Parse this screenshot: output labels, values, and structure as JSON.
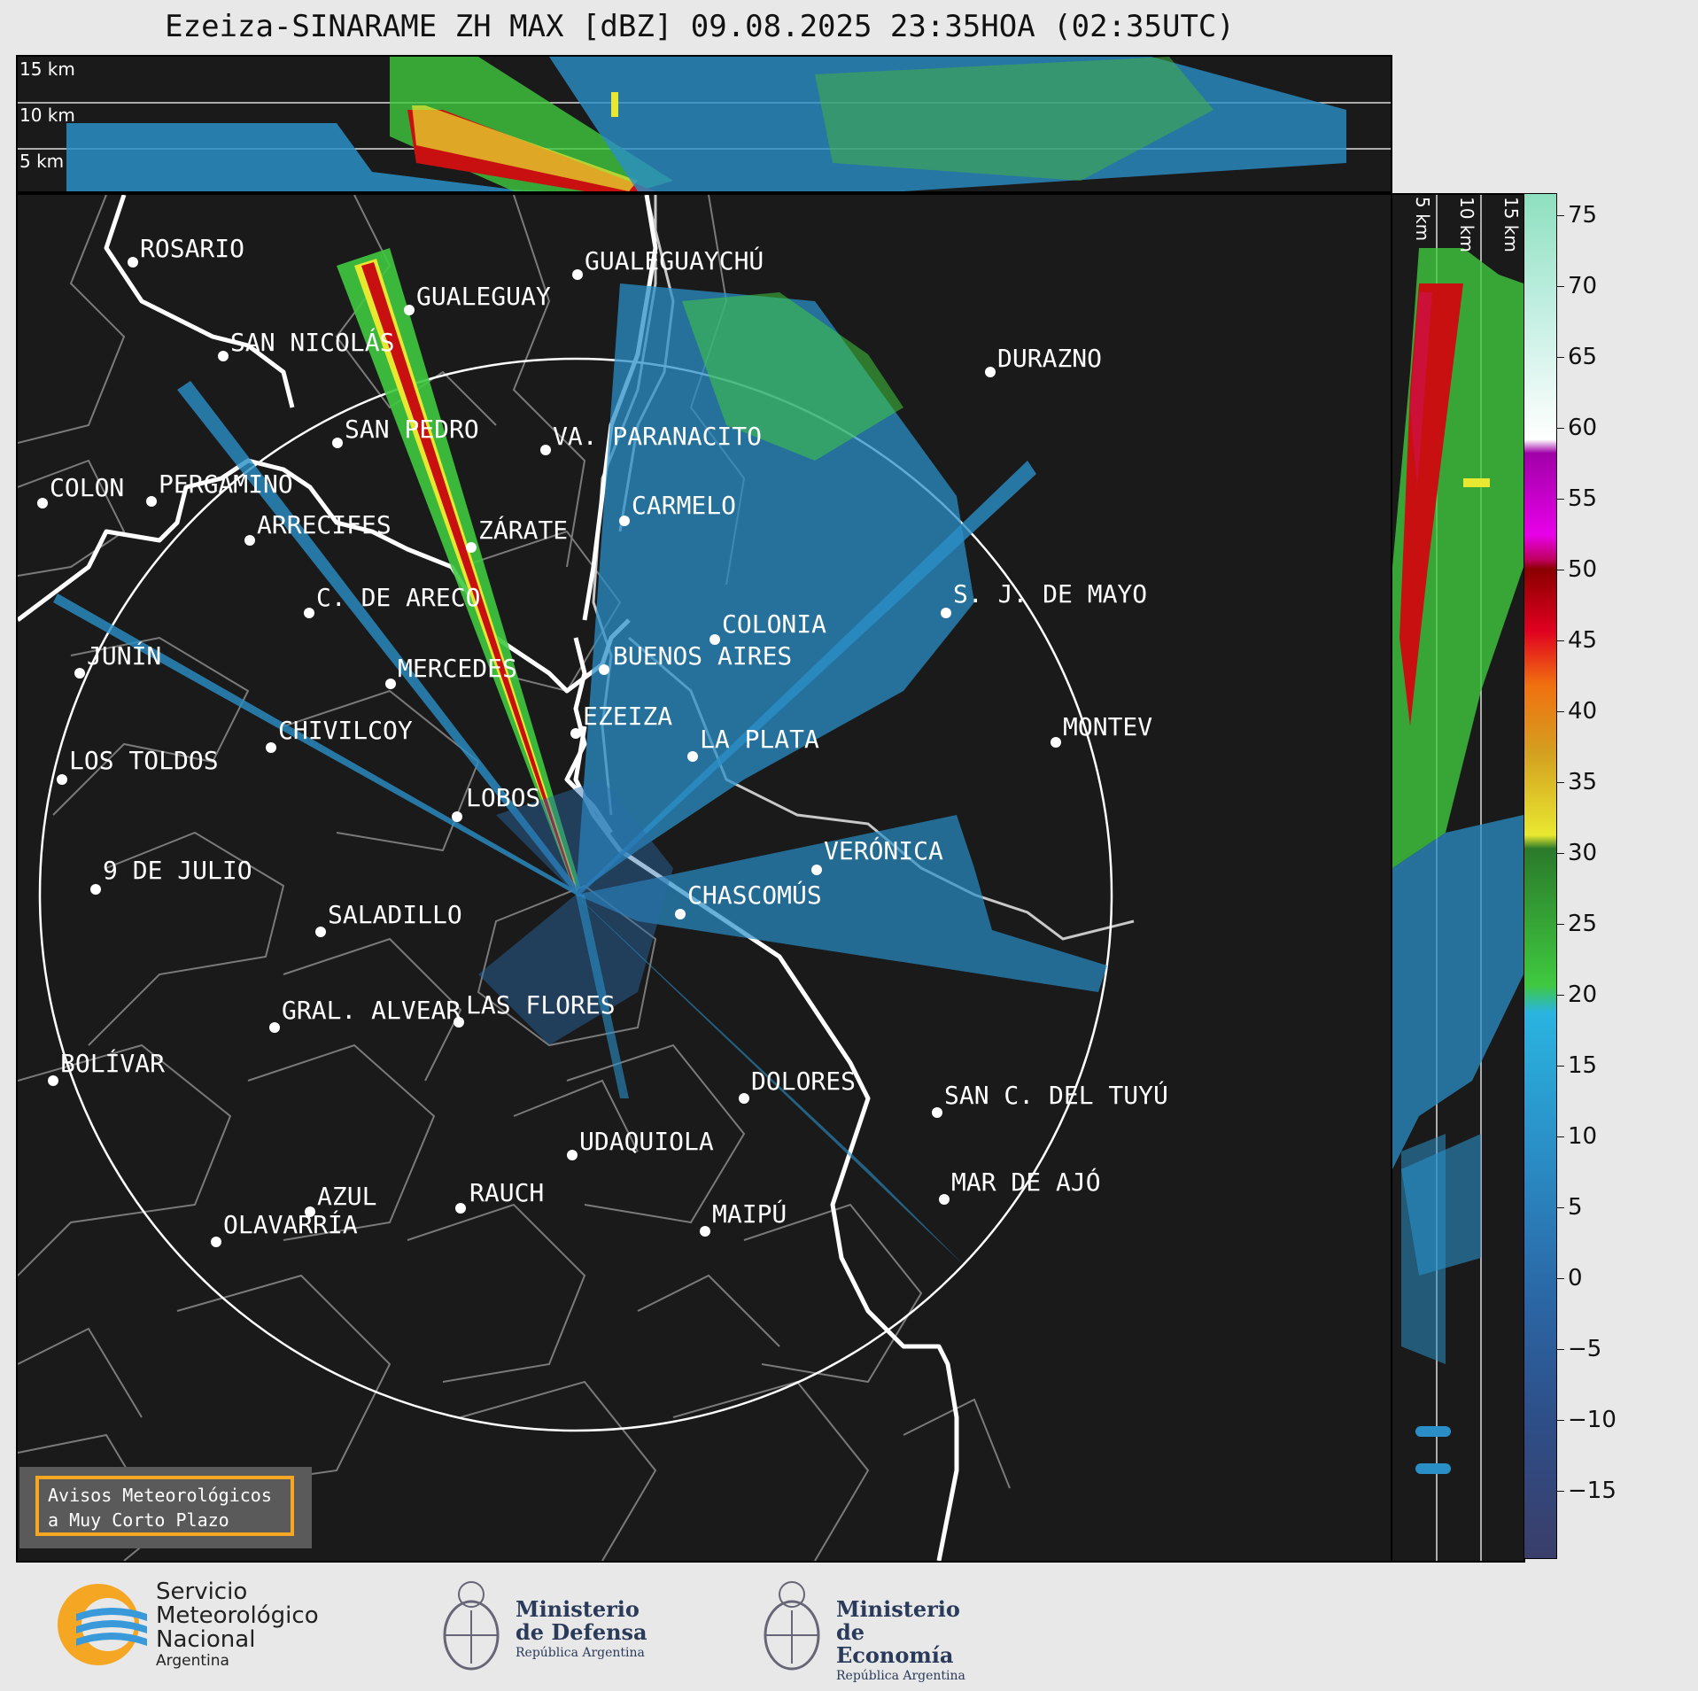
{
  "title": "Ezeiza-SINARAME ZH MAX [dBZ] 09.08.2025 23:35HOA (02:35UTC)",
  "top_panel": {
    "levels": [
      "15 km",
      "10 km",
      "5 km"
    ]
  },
  "side_panel": {
    "levels": [
      "5 km",
      "10 km",
      "15 km"
    ]
  },
  "cities": [
    {
      "name": "ROSARIO"
    },
    {
      "name": "GUALEGUAYCHÚ"
    },
    {
      "name": "GUALEGUAY"
    },
    {
      "name": "SAN NICOLÁS"
    },
    {
      "name": "DURAZNO"
    },
    {
      "name": "SAN PEDRO"
    },
    {
      "name": "VA. PARANACITO"
    },
    {
      "name": "COLON"
    },
    {
      "name": "PERGAMINO"
    },
    {
      "name": "CARMELO"
    },
    {
      "name": "ARRECIFES"
    },
    {
      "name": "ZÁRATE"
    },
    {
      "name": "S. J. DE MAYO"
    },
    {
      "name": "C. DE ARECO"
    },
    {
      "name": "COLONIA"
    },
    {
      "name": "JUNÍN"
    },
    {
      "name": "BUENOS AIRES"
    },
    {
      "name": "MERCEDES"
    },
    {
      "name": "MONTEV"
    },
    {
      "name": "EZEIZA"
    },
    {
      "name": "CHIVILCOY"
    },
    {
      "name": "LA PLATA"
    },
    {
      "name": "LOS TOLDOS"
    },
    {
      "name": "LOBOS"
    },
    {
      "name": "VERÓNICA"
    },
    {
      "name": "9 DE JULIO"
    },
    {
      "name": "CHASCOMÚS"
    },
    {
      "name": "SALADILLO"
    },
    {
      "name": "GRAL. ALVEAR"
    },
    {
      "name": "LAS FLORES"
    },
    {
      "name": "BOLÍVAR"
    },
    {
      "name": "DOLORES"
    },
    {
      "name": "SAN C. DEL TUYÚ"
    },
    {
      "name": "UDAQUIOLA"
    },
    {
      "name": "MAR DE AJÓ"
    },
    {
      "name": "AZUL"
    },
    {
      "name": "RAUCH"
    },
    {
      "name": "MAIPÚ"
    },
    {
      "name": "OLAVARRÍA"
    }
  ],
  "colorbar": {
    "ticks": [
      "75",
      "70",
      "65",
      "60",
      "55",
      "50",
      "45",
      "40",
      "35",
      "30",
      "25",
      "20",
      "15",
      "10",
      "5",
      "0",
      "−5",
      "−10",
      "−15"
    ],
    "min": -20,
    "max": 76.5
  },
  "aviso": {
    "line1": "Avisos Meteorológicos",
    "line2": "a Muy Corto Plazo"
  },
  "logos": {
    "smn_line1": "Servicio",
    "smn_line2": "Meteorológico",
    "smn_line3": "Nacional",
    "smn_line4": "Argentina",
    "defensa_line1": "Ministerio",
    "defensa_line2": "de Defensa",
    "defensa_line3": "República Argentina",
    "economia_line1": "Ministerio",
    "economia_line2": "de Economía",
    "economia_line3": "República Argentina"
  },
  "colors": {
    "strong": "#cc0000",
    "moderate": "#3ad13a",
    "weak": "#2aa0d8",
    "background": "#1a1a1a"
  }
}
